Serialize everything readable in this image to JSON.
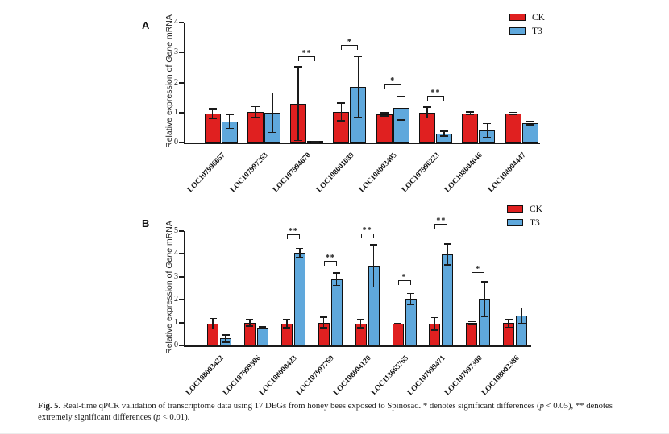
{
  "figure": {
    "caption_segments": [
      {
        "t": "Fig. 5.",
        "s": "bold"
      },
      {
        "t": "  Real-time qPCR validation of transcriptome data using 17 DEGs from honey bees exposed to Spinosad. * denotes significant differences (",
        "s": "normal"
      },
      {
        "t": "p",
        "s": "italic"
      },
      {
        "t": " < 0.05), ** denotes extremely significant differences (",
        "s": "normal"
      },
      {
        "t": "p",
        "s": "italic"
      },
      {
        "t": " < 0.01).",
        "s": "normal"
      }
    ]
  },
  "colors": {
    "ck": "#E02020",
    "t3": "#5FA8DC",
    "axis": "#1a1a1a"
  },
  "chart_data": [
    {
      "type": "bar",
      "panel": "A",
      "title": "",
      "xlabel": "",
      "ylabel": "Relative expression of Gene mRNA",
      "ylabel_segments": [
        {
          "t": "Relative expression of ",
          "s": "normal"
        },
        {
          "t": "Gene",
          "s": "italic"
        },
        {
          "t": " mRNA",
          "s": "normal"
        }
      ],
      "ylim": [
        0,
        4
      ],
      "yticks": [
        0,
        1,
        2,
        3,
        4
      ],
      "grid": false,
      "legend_position": "top-right",
      "categories": [
        "LOC107996657",
        "LOC107997263",
        "LOC107994670",
        "LOC108001039",
        "LOC108003495",
        "LOC107996223",
        "LOC108004046",
        "LOC108004447"
      ],
      "series": [
        {
          "name": "CK",
          "color": "#E02020",
          "values": [
            0.97,
            1.02,
            1.3,
            1.02,
            0.94,
            1.0,
            0.97,
            0.97
          ],
          "errors": [
            0.18,
            0.2,
            1.25,
            0.32,
            0.08,
            0.2,
            0.07,
            0.06
          ]
        },
        {
          "name": "T3",
          "color": "#5FA8DC",
          "values": [
            0.7,
            0.99,
            0.03,
            1.85,
            1.15,
            0.3,
            0.4,
            0.65
          ],
          "errors": [
            0.25,
            0.68,
            0.02,
            1.03,
            0.42,
            0.1,
            0.25,
            0.08
          ]
        }
      ],
      "significance": [
        {
          "category": "LOC107994670",
          "label": "**",
          "y": 2.7
        },
        {
          "category": "LOC108001039",
          "label": "*",
          "y": 3.1
        },
        {
          "category": "LOC108003495",
          "label": "*",
          "y": 1.8
        },
        {
          "category": "LOC107996223",
          "label": "**",
          "y": 1.4
        }
      ]
    },
    {
      "type": "bar",
      "panel": "B",
      "title": "",
      "xlabel": "",
      "ylabel": "Relative expression of Gene mRNA",
      "ylabel_segments": [
        {
          "t": "Relative expression of ",
          "s": "normal"
        },
        {
          "t": "Gene",
          "s": "italic"
        },
        {
          "t": " mRNA",
          "s": "normal"
        }
      ],
      "ylim": [
        0,
        5
      ],
      "yticks": [
        0,
        1,
        2,
        3,
        4,
        5
      ],
      "grid": false,
      "legend_position": "top-right",
      "categories": [
        "LOC108003422",
        "LOC107999396",
        "LOC108000423",
        "LOC107997769",
        "LOC108004120",
        "LOC113665765",
        "LOC107999471",
        "LOC107997300",
        "LOC108002386"
      ],
      "series": [
        {
          "name": "CK",
          "color": "#E02020",
          "values": [
            0.95,
            1.0,
            0.95,
            1.0,
            0.95,
            0.95,
            0.95,
            0.97,
            0.97
          ],
          "errors": [
            0.25,
            0.18,
            0.2,
            0.26,
            0.2,
            0.05,
            0.3,
            0.1,
            0.2
          ]
        },
        {
          "name": "T3",
          "color": "#5FA8DC",
          "values": [
            0.3,
            0.78,
            4.05,
            2.9,
            3.47,
            2.03,
            3.98,
            2.03,
            1.3
          ],
          "errors": [
            0.18,
            0.05,
            0.22,
            0.3,
            0.95,
            0.27,
            0.48,
            0.78,
            0.37
          ]
        }
      ],
      "significance": [
        {
          "category": "LOC108000423",
          "label": "**",
          "y": 4.65
        },
        {
          "category": "LOC107997769",
          "label": "**",
          "y": 3.5
        },
        {
          "category": "LOC108004120",
          "label": "**",
          "y": 4.7
        },
        {
          "category": "LOC113665765",
          "label": "*",
          "y": 2.65
        },
        {
          "category": "LOC107999471",
          "label": "**",
          "y": 5.1
        },
        {
          "category": "LOC107997300",
          "label": "*",
          "y": 3.0
        }
      ]
    }
  ]
}
